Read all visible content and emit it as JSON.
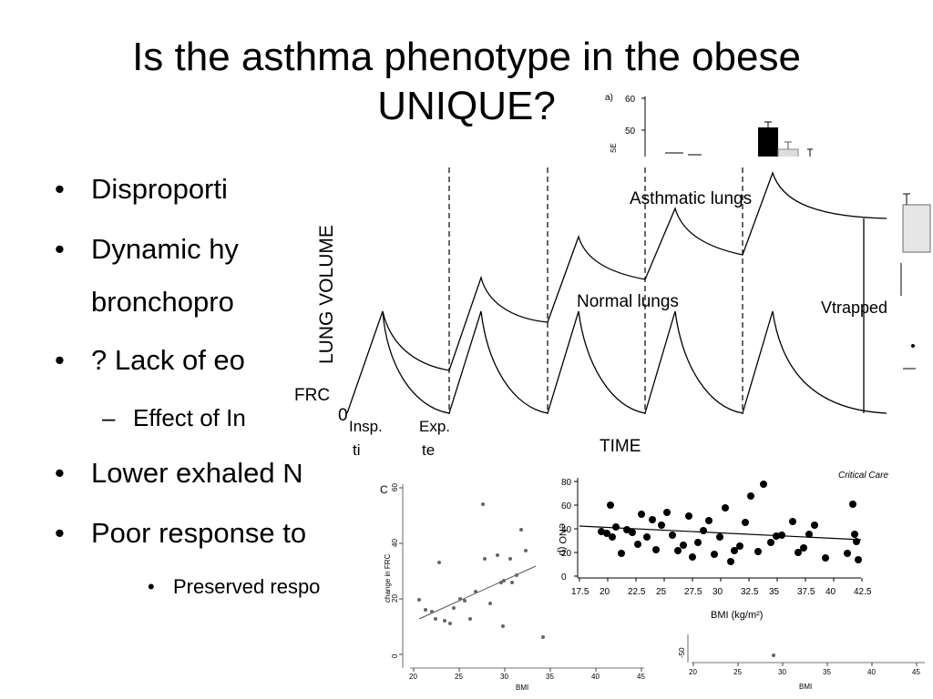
{
  "slide": {
    "title_line1": "Is the asthma phenotype in the obese",
    "title_line2": "UNIQUE?",
    "bullets": [
      {
        "marker": "•",
        "text": "Disproporti"
      },
      {
        "marker": "•",
        "text": "Dynamic hy"
      },
      {
        "marker": "",
        "text": "bronchopro"
      },
      {
        "marker": "•",
        "text": "? Lack of eo"
      },
      {
        "marker": "–",
        "text": "Effect of In"
      },
      {
        "marker": "•",
        "text": "Lower exhaled N"
      },
      {
        "marker": "•",
        "text": "Poor response to"
      },
      {
        "marker": "•",
        "text": "Preserved respo"
      }
    ]
  },
  "fig_bar_top": {
    "panel_label": "a)",
    "ylabel": "SE",
    "yticks": [
      "60",
      "50"
    ]
  },
  "fig_lung": {
    "ylabel": "LUNG VOLUME",
    "xlabel": "TIME",
    "frc_label": "FRC",
    "zero_label": "0",
    "insp_label_1": "Insp.",
    "insp_label_2": "ti",
    "exp_label_1": "Exp.",
    "exp_label_2": "te",
    "asthmatic_label": "Asthmatic lungs",
    "normal_label": "Normal lungs",
    "vtrapped_label": "Vtrapped"
  },
  "fig_frc": {
    "panel_label": "C",
    "ylabel": "change in FRC",
    "xlabel": "BMI",
    "xticks": [
      "20",
      "25",
      "30",
      "35",
      "40",
      "45"
    ],
    "yticks": [
      "60",
      "40",
      "20",
      "0"
    ]
  },
  "fig_eno": {
    "corner_label": "Critical Care",
    "ylabel": "eNO (p",
    "xlabel": "BMI (kg/m²)",
    "xticks": [
      "17.5",
      "20",
      "22.5",
      "25",
      "27.5",
      "30",
      "32.5",
      "35",
      "37.5",
      "40",
      "42.5"
    ],
    "yticks": [
      "80",
      "60",
      "40",
      "20",
      "0"
    ]
  },
  "fig_bottom": {
    "ytick": "-50",
    "xlabel": "BMI",
    "xticks": [
      "20",
      "25",
      "30",
      "35",
      "40",
      "45"
    ]
  }
}
